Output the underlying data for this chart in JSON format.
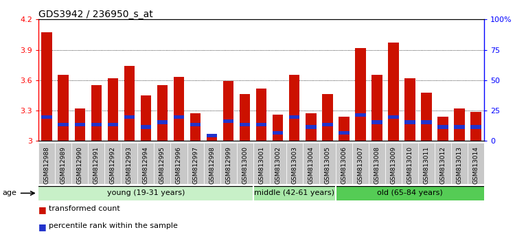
{
  "title": "GDS3942 / 236950_s_at",
  "samples": [
    "GSM812988",
    "GSM812989",
    "GSM812990",
    "GSM812991",
    "GSM812992",
    "GSM812993",
    "GSM812994",
    "GSM812995",
    "GSM812996",
    "GSM812997",
    "GSM812998",
    "GSM812999",
    "GSM813000",
    "GSM813001",
    "GSM813002",
    "GSM813003",
    "GSM813004",
    "GSM813005",
    "GSM813006",
    "GSM813007",
    "GSM813008",
    "GSM813009",
    "GSM813010",
    "GSM813011",
    "GSM813012",
    "GSM813013",
    "GSM813014"
  ],
  "red_values": [
    4.07,
    3.65,
    3.32,
    3.55,
    3.62,
    3.74,
    3.45,
    3.55,
    3.63,
    3.27,
    3.07,
    3.59,
    3.46,
    3.52,
    3.26,
    3.65,
    3.27,
    3.46,
    3.24,
    3.92,
    3.65,
    3.97,
    3.62,
    3.48,
    3.24,
    3.32,
    3.29
  ],
  "percentile_values": [
    18,
    12,
    12,
    12,
    12,
    18,
    10,
    14,
    18,
    12,
    5,
    15,
    12,
    12,
    5,
    18,
    10,
    12,
    5,
    20,
    14,
    18,
    14,
    14,
    10,
    10,
    10
  ],
  "groups": [
    {
      "label": "young (19-31 years)",
      "start": 0,
      "end": 13,
      "color": "#c8f0c8"
    },
    {
      "label": "middle (42-61 years)",
      "start": 13,
      "end": 18,
      "color": "#a8e8a8"
    },
    {
      "label": "old (65-84 years)",
      "start": 18,
      "end": 27,
      "color": "#55cc55"
    }
  ],
  "ylim_left": [
    3.0,
    4.2
  ],
  "ylim_right": [
    0,
    100
  ],
  "yticks_left": [
    3.0,
    3.3,
    3.6,
    3.9,
    4.2
  ],
  "ytick_labels_left": [
    "3",
    "3.3",
    "3.6",
    "3.9",
    "4.2"
  ],
  "yticks_right": [
    0,
    25,
    50,
    75,
    100
  ],
  "ytick_labels_right": [
    "0",
    "25",
    "50",
    "75",
    "100%"
  ],
  "bar_color": "#cc1100",
  "blue_color": "#2233cc",
  "tick_bg_color": "#c8c8c8",
  "title_fontsize": 10,
  "tick_fontsize": 6.5,
  "legend_red_label": "transformed count",
  "legend_blue_label": "percentile rank within the sample",
  "age_label": "age"
}
